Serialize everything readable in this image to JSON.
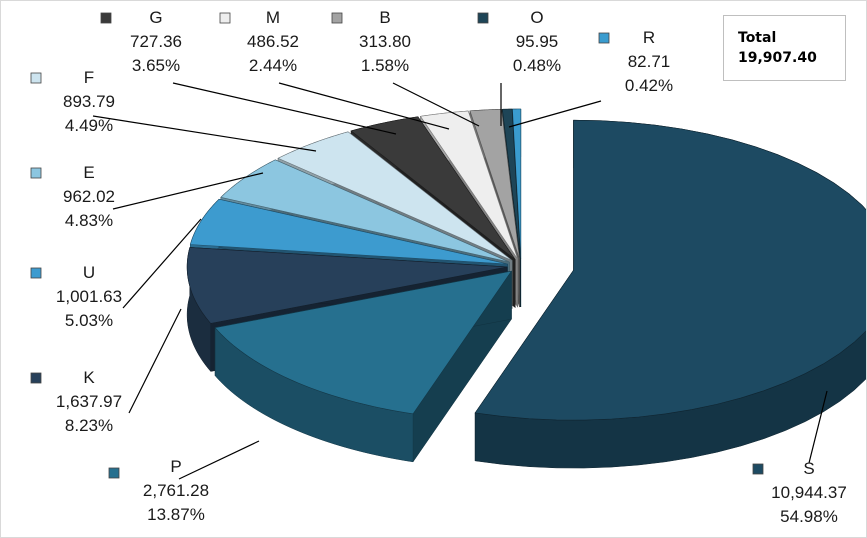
{
  "chart_data": {
    "type": "pie",
    "title": "",
    "total": {
      "label": "Total",
      "value": "19,907.40"
    },
    "slices": [
      {
        "name": "S",
        "value": "10,944.37",
        "percent": "54.98%",
        "v": 10944.37,
        "color": "#1d4a62"
      },
      {
        "name": "P",
        "value": "2,761.28",
        "percent": "13.87%",
        "v": 2761.28,
        "color": "#26708f"
      },
      {
        "name": "K",
        "value": "1,637.97",
        "percent": "8.23%",
        "v": 1637.97,
        "color": "#27405a"
      },
      {
        "name": "U",
        "value": "1,001.63",
        "percent": "5.03%",
        "v": 1001.63,
        "color": "#3d9bcf"
      },
      {
        "name": "E",
        "value": "962.02",
        "percent": "4.83%",
        "v": 962.02,
        "color": "#8cc6e0"
      },
      {
        "name": "F",
        "value": "893.79",
        "percent": "4.49%",
        "v": 893.79,
        "color": "#cde4ef"
      },
      {
        "name": "G",
        "value": "727.36",
        "percent": "3.65%",
        "v": 727.36,
        "color": "#3a3a3a"
      },
      {
        "name": "M",
        "value": "486.52",
        "percent": "2.44%",
        "v": 486.52,
        "color": "#eeeeee"
      },
      {
        "name": "B",
        "value": "313.80",
        "percent": "1.58%",
        "v": 313.8,
        "color": "#a3a3a3"
      },
      {
        "name": "O",
        "value": "95.95",
        "percent": "0.48%",
        "v": 95.95,
        "color": "#1e4557"
      },
      {
        "name": "R",
        "value": "82.71",
        "percent": "0.42%",
        "v": 82.71,
        "color": "#3a9ccf"
      }
    ]
  }
}
